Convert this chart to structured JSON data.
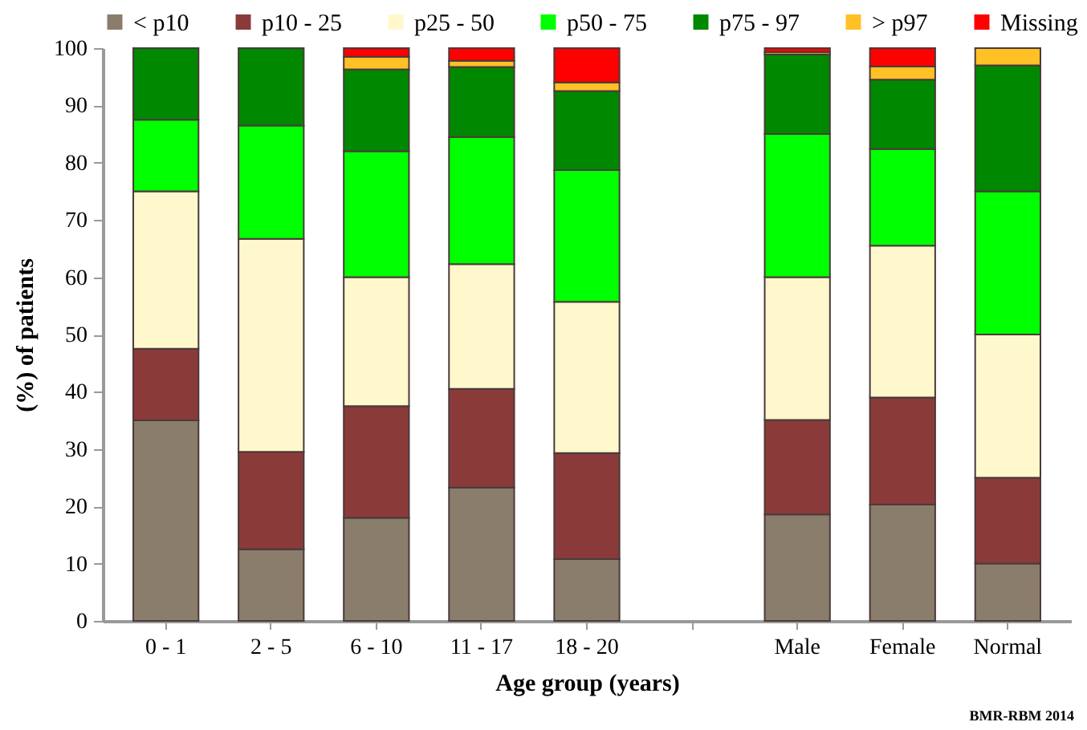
{
  "chart_data": {
    "type": "bar",
    "stacked": true,
    "xlabel": "Age group (years)",
    "ylabel": "(%) of patients",
    "categories": [
      "0 - 1",
      "2 - 5",
      "6 - 10",
      "11 - 17",
      "18 - 20",
      null,
      "Male",
      "Female",
      "Normal"
    ],
    "series": [
      {
        "name": "< p10",
        "color": "#8b7d6b",
        "values": [
          35,
          12.5,
          18,
          23.3,
          10.8,
          null,
          18.6,
          20.3,
          10
        ]
      },
      {
        "name": "p10 - 25",
        "color": "#8b3a3a",
        "values": [
          12.5,
          17,
          19.5,
          17.2,
          18.5,
          null,
          16.5,
          18.7,
          15
        ]
      },
      {
        "name": "p25 - 50",
        "color": "#fff8cc",
        "values": [
          27.5,
          37.2,
          22.5,
          21.8,
          26.4,
          null,
          24.9,
          26.5,
          25
        ]
      },
      {
        "name": "p50 - 75",
        "color": "#00ff00",
        "values": [
          12.5,
          19.8,
          22,
          22.2,
          23,
          null,
          25,
          16.9,
          25
        ]
      },
      {
        "name": "p75 - 97",
        "color": "#008800",
        "values": [
          12.5,
          13.5,
          14.3,
          12.2,
          13.8,
          null,
          13.9,
          12.1,
          22
        ]
      },
      {
        "name": "> p97",
        "color": "#ffc125",
        "values": [
          0,
          0,
          2.2,
          1.1,
          1.5,
          null,
          0.4,
          2.3,
          3
        ]
      },
      {
        "name": "Missing",
        "color": "#ff0000",
        "values": [
          0,
          0,
          1.5,
          2.2,
          6,
          null,
          0.7,
          3.2,
          0
        ]
      }
    ],
    "ylim": [
      0,
      100
    ],
    "yticks": [
      0,
      10,
      20,
      30,
      40,
      50,
      60,
      70,
      80,
      90,
      100
    ],
    "grid": false,
    "legend": "top",
    "annotations": [
      "BMR-RBM 2014"
    ]
  }
}
